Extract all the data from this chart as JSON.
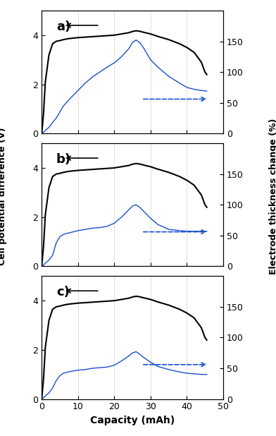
{
  "panels": [
    "a)",
    "b)",
    "c)"
  ],
  "xlim": [
    0,
    50
  ],
  "ylim_left": [
    0,
    5
  ],
  "ylim_right": [
    0,
    200
  ],
  "xlabel": "Capacity (mAh)",
  "ylabel_left": "Cell potential difference (V)",
  "ylabel_right": "Electrode thickness change (%)",
  "xticks": [
    0,
    10,
    20,
    30,
    40,
    50
  ],
  "yticks_left": [
    0,
    2,
    4
  ],
  "yticks_right": [
    0,
    50,
    100,
    150
  ],
  "black_color": "#000000",
  "blue_color": "#1a4fcc",
  "background": "#ffffff",
  "arrow_color_black": "#000000",
  "arrow_color_blue": "#1a4fcc"
}
